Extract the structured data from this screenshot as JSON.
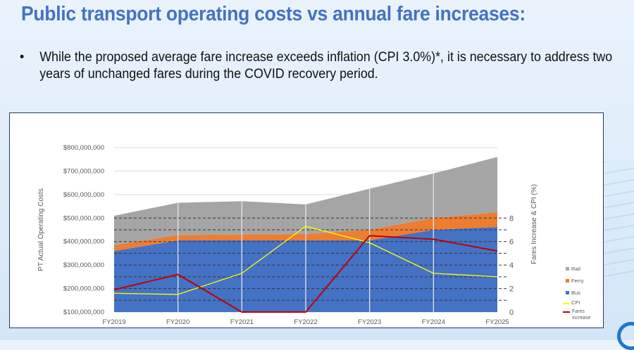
{
  "slide": {
    "title": "Public transport operating costs vs annual fare increases:",
    "bullet_marker": "•",
    "bullet_text": "While the proposed average fare increase exceeds inflation (CPI 3.0%)*, it is necessary to address two years of unchanged fares during the COVID recovery period."
  },
  "chart_data": {
    "type": "area",
    "categories": [
      "FY2019",
      "FY2020",
      "FY2021",
      "FY2022",
      "FY2023",
      "FY2024",
      "FY2025"
    ],
    "stacked": true,
    "ylabel": "PT Actual Operating Costs",
    "ylim": [
      100000000,
      800000000
    ],
    "y_ticks": [
      "$100,000,000",
      "$200,000,000",
      "$300,000,000",
      "$400,000,000",
      "$500,000,000",
      "$600,000,000",
      "$700,000,000",
      "$800,000,000"
    ],
    "series": [
      {
        "name": "Bus",
        "color": "#4472c4",
        "values": [
          360000000,
          405000000,
          405000000,
          405000000,
          405000000,
          450000000,
          462000000
        ]
      },
      {
        "name": "Ferry",
        "color": "#ed7d31",
        "values": [
          25000000,
          23000000,
          25000000,
          27000000,
          45000000,
          50000000,
          63000000
        ]
      },
      {
        "name": "Rail",
        "color": "#a5a5a5",
        "values": [
          125000000,
          137000000,
          142000000,
          126000000,
          175000000,
          190000000,
          235000000
        ]
      }
    ],
    "secondary_axis": {
      "ylabel": "Fares Increase & CPI (%)",
      "ylim": [
        0,
        8
      ],
      "ticks": [
        "0",
        "2",
        "4",
        "6",
        "8"
      ],
      "gridlines": "dashed",
      "series": [
        {
          "name": "CPI",
          "type": "line",
          "color": "#ffff00",
          "values": [
            1.6,
            1.5,
            3.3,
            7.3,
            5.9,
            3.3,
            3.0
          ]
        },
        {
          "name": "Fares increase",
          "type": "line",
          "color": "#c00000",
          "values": [
            1.9,
            3.2,
            0,
            0,
            6.5,
            6.2,
            5.2
          ]
        }
      ]
    },
    "legend": {
      "position": "right",
      "entries": [
        "Rail",
        "Ferry",
        "Bus",
        "CPI",
        "Fares increase"
      ]
    },
    "grid": true
  }
}
